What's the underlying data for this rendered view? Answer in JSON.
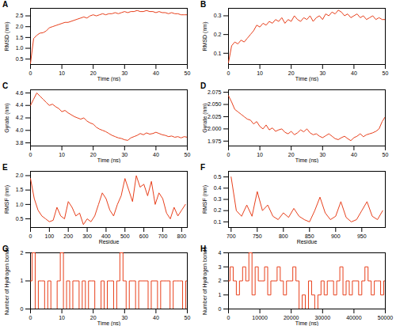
{
  "chart_data": [
    {
      "title": "A",
      "type": "line",
      "x_label": "Time (ns)",
      "y_label": "RMSD (nm)",
      "color": "#e8401c",
      "x": [
        0,
        1,
        2,
        3,
        4,
        5,
        6,
        7,
        8,
        9,
        10,
        11,
        12,
        13,
        14,
        15,
        16,
        17,
        18,
        19,
        20,
        21,
        22,
        23,
        24,
        25,
        26,
        27,
        28,
        29,
        30,
        31,
        32,
        33,
        34,
        35,
        36,
        37,
        38,
        39,
        40,
        41,
        42,
        43,
        44,
        45,
        46,
        47,
        48,
        49,
        50
      ],
      "values": [
        0.3,
        1.45,
        1.6,
        1.7,
        1.72,
        1.8,
        1.95,
        2.0,
        2.05,
        2.1,
        2.15,
        2.2,
        2.2,
        2.25,
        2.3,
        2.35,
        2.4,
        2.45,
        2.4,
        2.5,
        2.55,
        2.5,
        2.55,
        2.6,
        2.55,
        2.6,
        2.6,
        2.65,
        2.6,
        2.65,
        2.7,
        2.65,
        2.7,
        2.7,
        2.75,
        2.7,
        2.7,
        2.75,
        2.7,
        2.7,
        2.65,
        2.7,
        2.65,
        2.65,
        2.6,
        2.65,
        2.6,
        2.6,
        2.55,
        2.55,
        2.55
      ],
      "xlim": [
        0,
        50
      ],
      "xticks": [
        0,
        10,
        20,
        30,
        40,
        50
      ],
      "ylim": [
        0.25,
        2.85
      ],
      "yticks": [
        0.5,
        {
          "value": 1,
          "label": "1.0"
        },
        1.5,
        {
          "value": 2,
          "label": "2.0"
        },
        2.5
      ]
    },
    {
      "title": "B",
      "type": "line",
      "x_label": "Time (ns)",
      "y_label": "RMSD (nm)",
      "color": "#e8401c",
      "x": [
        0,
        1,
        2,
        3,
        4,
        5,
        6,
        7,
        8,
        9,
        10,
        11,
        12,
        13,
        14,
        15,
        16,
        17,
        18,
        19,
        20,
        21,
        22,
        23,
        24,
        25,
        26,
        27,
        28,
        29,
        30,
        31,
        32,
        33,
        34,
        35,
        36,
        37,
        38,
        39,
        40,
        41,
        42,
        43,
        44,
        45,
        46,
        47,
        48,
        49,
        50
      ],
      "values": [
        0.05,
        0.14,
        0.16,
        0.15,
        0.17,
        0.16,
        0.18,
        0.2,
        0.22,
        0.25,
        0.24,
        0.26,
        0.25,
        0.27,
        0.26,
        0.28,
        0.27,
        0.29,
        0.26,
        0.28,
        0.27,
        0.3,
        0.28,
        0.27,
        0.29,
        0.28,
        0.3,
        0.27,
        0.29,
        0.3,
        0.28,
        0.31,
        0.3,
        0.32,
        0.31,
        0.33,
        0.32,
        0.3,
        0.31,
        0.29,
        0.3,
        0.31,
        0.29,
        0.3,
        0.28,
        0.29,
        0.3,
        0.28,
        0.29,
        0.28,
        0.28
      ],
      "xlim": [
        0,
        50
      ],
      "xticks": [
        0,
        10,
        20,
        30,
        40,
        50
      ],
      "ylim": [
        0.04,
        0.34
      ],
      "yticks": [
        0.1,
        0.2,
        0.3
      ]
    },
    {
      "title": "C",
      "type": "line",
      "x_label": "Time (ns)",
      "y_label": "Gyrate (nm)",
      "color": "#e8401c",
      "x": [
        0,
        1,
        2,
        3,
        4,
        5,
        6,
        7,
        8,
        9,
        10,
        11,
        12,
        13,
        14,
        15,
        16,
        17,
        18,
        19,
        20,
        21,
        22,
        23,
        24,
        25,
        26,
        27,
        28,
        29,
        30,
        31,
        32,
        33,
        34,
        35,
        36,
        37,
        38,
        39,
        40,
        41,
        42,
        43,
        44,
        45,
        46,
        47,
        48,
        49,
        50
      ],
      "values": [
        4.4,
        4.5,
        4.6,
        4.55,
        4.5,
        4.45,
        4.4,
        4.42,
        4.38,
        4.35,
        4.3,
        4.32,
        4.28,
        4.25,
        4.22,
        4.2,
        4.18,
        4.2,
        4.15,
        4.12,
        4.1,
        4.05,
        4.02,
        4.0,
        3.98,
        3.95,
        3.92,
        3.9,
        3.88,
        3.87,
        3.85,
        3.84,
        3.88,
        3.9,
        3.92,
        3.95,
        3.93,
        3.96,
        3.94,
        3.95,
        3.97,
        3.95,
        3.93,
        3.92,
        3.9,
        3.91,
        3.89,
        3.9,
        3.88,
        3.9,
        3.89
      ],
      "xlim": [
        0,
        50
      ],
      "xticks": [
        0,
        10,
        20,
        30,
        40,
        50
      ],
      "ylim": [
        3.75,
        4.65
      ],
      "yticks": [
        3.8,
        {
          "value": 4,
          "label": "4.0"
        },
        4.2,
        4.4,
        4.6
      ]
    },
    {
      "title": "D",
      "type": "line",
      "x_label": "Time (ns)",
      "y_label": "Gyrate (nm)",
      "color": "#e8401c",
      "x": [
        0,
        1,
        2,
        3,
        4,
        5,
        6,
        7,
        8,
        9,
        10,
        11,
        12,
        13,
        14,
        15,
        16,
        17,
        18,
        19,
        20,
        21,
        22,
        23,
        24,
        25,
        26,
        27,
        28,
        29,
        30,
        31,
        32,
        33,
        34,
        35,
        36,
        37,
        38,
        39,
        40,
        41,
        42,
        43,
        44,
        45,
        46,
        47,
        48,
        49,
        50
      ],
      "values": [
        2.068,
        2.055,
        2.04,
        2.035,
        2.03,
        2.025,
        2.02,
        2.018,
        2.01,
        2.015,
        2.005,
        2.0,
        2.008,
        1.998,
        2.002,
        1.995,
        1.998,
        2.0,
        1.993,
        1.99,
        1.995,
        1.988,
        1.992,
        1.998,
        1.994,
        2.0,
        1.992,
        1.988,
        1.99,
        1.985,
        1.982,
        1.986,
        1.99,
        1.985,
        1.98,
        1.978,
        1.982,
        1.985,
        1.98,
        1.976,
        1.982,
        1.985,
        1.99,
        1.984,
        1.988,
        1.99,
        1.992,
        1.995,
        2.0,
        2.015,
        2.025
      ],
      "xlim": [
        0,
        50
      ],
      "xticks": [
        0,
        10,
        20,
        30,
        40,
        50
      ],
      "ylim": [
        1.965,
        2.08
      ],
      "yticks": [
        1.975,
        {
          "value": 2,
          "label": "2.000"
        },
        2.025,
        {
          "value": 2.05,
          "label": "2.050"
        },
        2.075
      ]
    },
    {
      "title": "E",
      "type": "line",
      "x_label": "Residue",
      "y_label": "RMSF (nm)",
      "color": "#e8401c",
      "x": [
        0,
        20,
        40,
        60,
        80,
        100,
        120,
        140,
        160,
        180,
        200,
        220,
        240,
        260,
        280,
        300,
        320,
        340,
        360,
        380,
        400,
        420,
        440,
        460,
        480,
        500,
        520,
        540,
        560,
        580,
        600,
        620,
        640,
        660,
        680,
        700,
        720,
        740,
        760,
        780,
        800,
        820
      ],
      "values": [
        1.9,
        1.2,
        0.8,
        0.6,
        0.5,
        0.4,
        0.45,
        0.9,
        0.6,
        0.5,
        1.1,
        0.9,
        0.6,
        0.7,
        0.3,
        0.5,
        0.4,
        0.6,
        1.0,
        1.4,
        1.2,
        0.8,
        0.6,
        1.0,
        1.3,
        1.9,
        1.5,
        1.1,
        2.0,
        1.6,
        1.7,
        1.3,
        1.8,
        1.0,
        1.4,
        1.2,
        0.7,
        0.5,
        0.9,
        0.6,
        0.8,
        1.0
      ],
      "xlim": [
        0,
        830
      ],
      "xticks": [
        0,
        100,
        200,
        300,
        400,
        500,
        600,
        700,
        800
      ],
      "ylim": [
        0.2,
        2.15
      ],
      "yticks": [
        0.5,
        {
          "value": 1,
          "label": "1.0"
        },
        1.5,
        {
          "value": 2,
          "label": "2.0"
        }
      ]
    },
    {
      "title": "F",
      "type": "line",
      "x_label": "Residue",
      "y_label": "RMSF (nm)",
      "color": "#e8401c",
      "x": [
        700,
        710,
        720,
        730,
        740,
        750,
        760,
        770,
        780,
        790,
        800,
        810,
        820,
        830,
        840,
        850,
        860,
        870,
        880,
        890,
        900,
        910,
        920,
        930,
        940,
        950,
        960,
        970,
        980,
        990
      ],
      "values": [
        0.5,
        0.2,
        0.15,
        0.25,
        0.15,
        0.37,
        0.2,
        0.25,
        0.15,
        0.12,
        0.18,
        0.14,
        0.22,
        0.15,
        0.12,
        0.1,
        0.2,
        0.32,
        0.18,
        0.12,
        0.15,
        0.28,
        0.14,
        0.1,
        0.12,
        0.2,
        0.28,
        0.15,
        0.12,
        0.2
      ],
      "xlim": [
        695,
        995
      ],
      "xticks": [
        700,
        750,
        800,
        850,
        900,
        950
      ],
      "ylim": [
        0.05,
        0.55
      ],
      "yticks": [
        0.1,
        0.2,
        0.3,
        0.4,
        0.5
      ]
    },
    {
      "title": "G",
      "type": "step",
      "x_label": "Time (ns)",
      "y_label": "Number of Hydrogen bonds",
      "color": "#e8401c",
      "x": [
        0,
        1,
        2,
        3,
        4,
        5,
        6,
        7,
        8,
        9,
        10,
        11,
        12,
        13,
        14,
        15,
        16,
        17,
        18,
        19,
        20,
        21,
        22,
        23,
        24,
        25,
        26,
        27,
        28,
        29,
        30,
        31,
        32,
        33,
        34,
        35,
        36,
        37,
        38,
        39,
        40,
        41,
        42,
        43,
        44,
        45,
        46,
        47,
        48,
        49,
        50
      ],
      "values": [
        1,
        2,
        0,
        1,
        1,
        0,
        1,
        0,
        0,
        1,
        2,
        0,
        1,
        0,
        1,
        1,
        0,
        1,
        0,
        1,
        1,
        0,
        0,
        1,
        0,
        1,
        1,
        0,
        1,
        2,
        1,
        0,
        1,
        1,
        0,
        1,
        1,
        1,
        0,
        1,
        1,
        0,
        1,
        1,
        1,
        0,
        1,
        1,
        1,
        0,
        1
      ],
      "xlim": [
        0,
        50
      ],
      "xticks": [
        0,
        10,
        20,
        30,
        40,
        50
      ],
      "ylim": [
        0,
        2
      ],
      "yticks": [
        0,
        1,
        2
      ]
    },
    {
      "title": "H",
      "type": "step",
      "x_label": "Time (ns)",
      "y_label": "Number of Hydrogen bonds",
      "color": "#e8401c",
      "x": [
        0,
        1000,
        2000,
        3000,
        4000,
        5000,
        6000,
        7000,
        8000,
        9000,
        10000,
        11000,
        12000,
        13000,
        14000,
        15000,
        16000,
        17000,
        18000,
        19000,
        20000,
        21000,
        22000,
        23000,
        24000,
        25000,
        26000,
        27000,
        28000,
        29000,
        30000,
        31000,
        32000,
        33000,
        34000,
        35000,
        36000,
        37000,
        38000,
        39000,
        40000,
        41000,
        42000,
        43000,
        44000,
        45000,
        46000,
        47000,
        48000,
        49000,
        50000
      ],
      "values": [
        2,
        3,
        2,
        1,
        2,
        3,
        2,
        4,
        1,
        3,
        2,
        2,
        3,
        1,
        2,
        2,
        3,
        2,
        1,
        2,
        2,
        3,
        2,
        0,
        1,
        0,
        2,
        1,
        0,
        1,
        2,
        1,
        2,
        2,
        1,
        2,
        3,
        1,
        2,
        1,
        2,
        2,
        1,
        2,
        3,
        2,
        1,
        2,
        2,
        1,
        2
      ],
      "xlim": [
        0,
        50000
      ],
      "xticks": [
        0,
        10000,
        20000,
        30000,
        40000,
        50000
      ],
      "ylim": [
        0,
        4
      ],
      "yticks": [
        0,
        1,
        2,
        3,
        4
      ]
    }
  ]
}
